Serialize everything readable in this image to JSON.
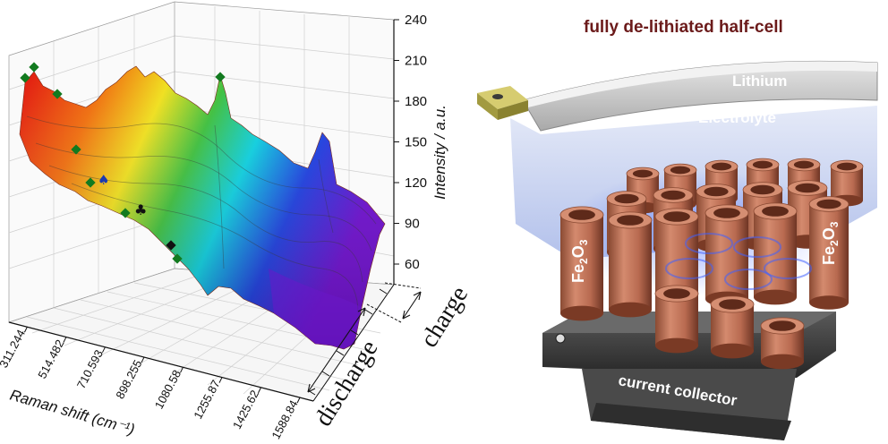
{
  "raman_plot": {
    "z_axis": {
      "title": "Intensity / a.u.",
      "ticks": [
        "240",
        "210",
        "180",
        "150",
        "120",
        "90",
        "60"
      ]
    },
    "x_axis": {
      "title": "Raman shift (cm⁻¹)",
      "ticks": [
        "311.244",
        "514.482",
        "710.593",
        "898.255",
        "1080.58",
        "1255.87",
        "1425.62",
        "1588.84"
      ]
    },
    "phases": {
      "discharge": "discharge",
      "charge": "charge"
    },
    "markers": [
      "diamond",
      "spade",
      "club"
    ],
    "colors": {
      "red": "#e01010",
      "yellow": "#f0e020",
      "green": "#30c030",
      "cyan": "#10d0e0",
      "blue": "#2040e0",
      "violet": "#7010d0",
      "marker_green": "#127a1f"
    }
  },
  "cell_diagram": {
    "title": "fully de-lithiated half-cell",
    "layers": {
      "lithium": "Lithium",
      "electrolyte": "Electrolyte",
      "collector": "current collector"
    },
    "electrode_left": {
      "base": "Fe",
      "sub2": "2",
      "o": "O",
      "sub3": "3"
    },
    "electrode_right": {
      "base": "Fe",
      "sub2": "2",
      "o": "O",
      "sub3": "3"
    },
    "colors": {
      "tube": "#c0745a",
      "tube_inner": "#7a3a25",
      "lithium": "#cfcfcf",
      "electrolyte": "#b8c6ec",
      "collector": "#3c3c3c",
      "tab": "#b7ad4e",
      "title": "#6b1a1a"
    }
  }
}
